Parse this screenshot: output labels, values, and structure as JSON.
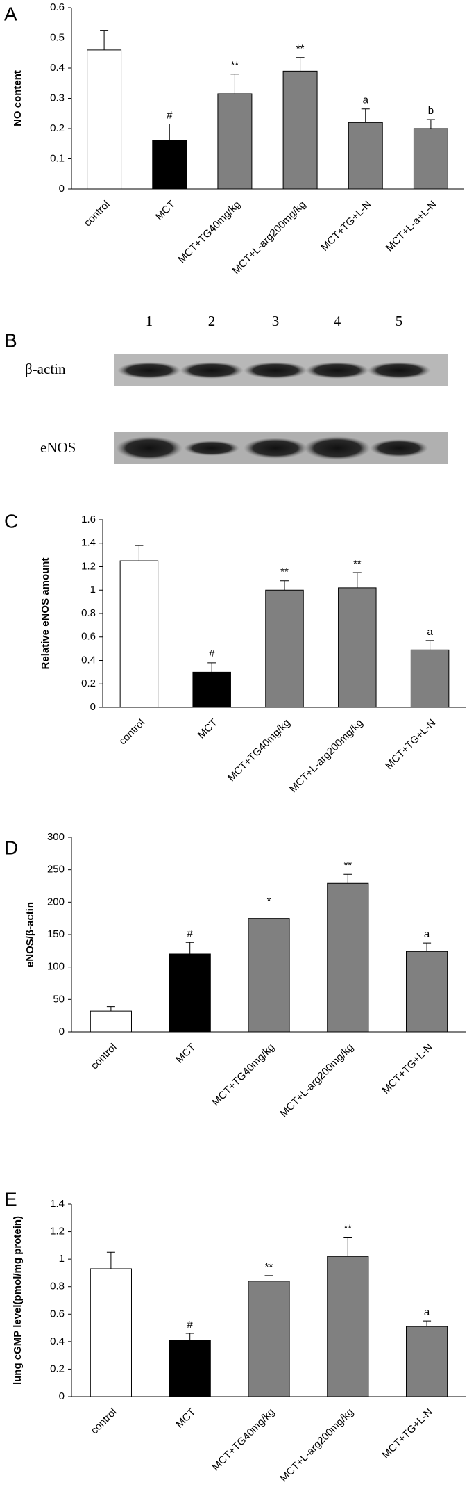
{
  "chart_data": [
    {
      "type": "bar",
      "panel_label": "A",
      "y_label": "NO content",
      "categories": [
        "control",
        "MCT",
        "MCT+TG40mg/kg",
        "MCT+L-arg200mg/kg",
        "MCT+TG+L-N",
        "MCT+L-a+L-N"
      ],
      "values": [
        0.46,
        0.16,
        0.315,
        0.39,
        0.22,
        0.2
      ],
      "errors": [
        0.065,
        0.055,
        0.065,
        0.045,
        0.045,
        0.03
      ],
      "annotations": [
        null,
        "#",
        "**",
        "**",
        "a",
        "b"
      ],
      "colors": [
        "#ffffff",
        "#000000",
        "#808080",
        "#808080",
        "#808080",
        "#808080"
      ],
      "ylim": [
        0,
        0.6
      ],
      "yticks": [
        0,
        0.1,
        0.2,
        0.3,
        0.4,
        0.5,
        0.6
      ]
    },
    {
      "type": "bar",
      "panel_label": "C",
      "y_label": "Relative eNOS amount",
      "categories": [
        "control",
        "MCT",
        "MCT+TG40mg/kg",
        "MCT+L-arg200mg/kg",
        "MCT+TG+L-N"
      ],
      "values": [
        1.25,
        0.3,
        1.0,
        1.02,
        0.49
      ],
      "errors": [
        0.13,
        0.08,
        0.08,
        0.13,
        0.08
      ],
      "annotations": [
        null,
        "#",
        "**",
        "**",
        "a"
      ],
      "colors": [
        "#ffffff",
        "#000000",
        "#808080",
        "#808080",
        "#808080"
      ],
      "ylim": [
        0,
        1.6
      ],
      "yticks": [
        0,
        0.2,
        0.4,
        0.6,
        0.8,
        1,
        1.2,
        1.4,
        1.6
      ]
    },
    {
      "type": "bar",
      "panel_label": "D",
      "y_label": "eNOS/β-actin",
      "categories": [
        "control",
        "MCT",
        "MCT+TG40mg/kg",
        "MCT+L-arg200mg/kg",
        "MCT+TG+L-N"
      ],
      "values": [
        32,
        120,
        175,
        229,
        124
      ],
      "errors": [
        7,
        18,
        13,
        14,
        13
      ],
      "annotations": [
        null,
        "#",
        "*",
        "**",
        "a"
      ],
      "colors": [
        "#ffffff",
        "#000000",
        "#808080",
        "#808080",
        "#808080"
      ],
      "ylim": [
        0,
        300
      ],
      "yticks": [
        0,
        50,
        100,
        150,
        200,
        250,
        300
      ]
    },
    {
      "type": "bar",
      "panel_label": "E",
      "y_label": "lung cGMP level(pmol/mg protein)",
      "categories": [
        "control",
        "MCT",
        "MCT+TG40mg/kg",
        "MCT+L-arg200mg/kg",
        "MCT+TG+L-N"
      ],
      "values": [
        0.93,
        0.41,
        0.84,
        1.02,
        0.51
      ],
      "errors": [
        0.12,
        0.05,
        0.04,
        0.14,
        0.04
      ],
      "annotations": [
        null,
        "#",
        "**",
        "**",
        "a"
      ],
      "colors": [
        "#ffffff",
        "#000000",
        "#808080",
        "#808080",
        "#808080"
      ],
      "ylim": [
        0,
        1.4
      ],
      "yticks": [
        0,
        0.2,
        0.4,
        0.6,
        0.8,
        1,
        1.2,
        1.4
      ]
    }
  ],
  "blot": {
    "panel_label": "B",
    "lanes": [
      "1",
      "2",
      "3",
      "4",
      "5"
    ],
    "rows": [
      "β-actin",
      "eNOS"
    ]
  }
}
